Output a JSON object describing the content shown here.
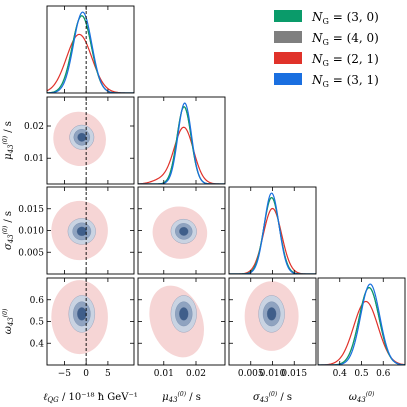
{
  "chart_data": {
    "type": "corner",
    "parameters": [
      {
        "id": "lqg",
        "label": "ℓQG / 10⁻¹⁸ ħ GeV⁻¹",
        "range": [
          -9,
          11
        ],
        "ticks": [
          -5,
          0,
          5
        ],
        "tick_labels": [
          "−5",
          "0",
          "5"
        ],
        "truth": 0
      },
      {
        "id": "mu",
        "label": "μ43(0) / s",
        "range": [
          0.002,
          0.029
        ],
        "ticks": [
          0.01,
          0.02
        ],
        "tick_labels": [
          "0.01",
          "0.02"
        ]
      },
      {
        "id": "sigma",
        "label": "σ43(0) / s",
        "range": [
          0.0,
          0.02
        ],
        "ticks": [
          0.005,
          0.01,
          0.015
        ],
        "tick_labels": [
          "0.005",
          "0.010",
          "0.015"
        ]
      },
      {
        "id": "omega",
        "label": "ω43(0)",
        "range": [
          0.3,
          0.7
        ],
        "ticks": [
          0.4,
          0.5,
          0.6
        ],
        "tick_labels": [
          "0.4",
          "0.5",
          "0.6"
        ]
      }
    ],
    "y_ticks": {
      "mu": [
        0.01,
        0.02
      ],
      "mu_labels": [
        "0.01",
        "0.02"
      ],
      "sigma": [
        0.005,
        0.01,
        0.015
      ],
      "sigma_labels": [
        "0.005",
        "0.010",
        "0.015"
      ],
      "omega": [
        0.4,
        0.5,
        0.6
      ],
      "omega_labels": [
        "0.4",
        "0.5",
        "0.6"
      ]
    },
    "series": [
      {
        "name": "NG = (3, 0)",
        "label_main": "N",
        "label_sub": "G",
        "label_value": " = (3, 0)",
        "color": "#0a9b6a"
      },
      {
        "name": "NG = (4, 0)",
        "label_main": "N",
        "label_sub": "G",
        "label_value": " = (4, 0)",
        "color": "#7f7f7f"
      },
      {
        "name": "NG = (2, 1)",
        "label_main": "N",
        "label_sub": "G",
        "label_value": " = (2, 1)",
        "color": "#e0322a"
      },
      {
        "name": "NG = (3, 1)",
        "label_main": "N",
        "label_sub": "G",
        "label_value": " = (3, 1)",
        "color": "#1a6fe0"
      }
    ],
    "marginals": {
      "lqg": [
        {
          "series": 0,
          "mean": -1.0,
          "sd": 2.2
        },
        {
          "series": 1,
          "mean": -1.0,
          "sd": 2.2
        },
        {
          "series": 2,
          "mean": -1.6,
          "sd": 2.9
        },
        {
          "series": 3,
          "mean": -0.8,
          "sd": 2.1
        }
      ],
      "mu": [
        {
          "series": 0,
          "mean": 0.0163,
          "sd": 0.0022
        },
        {
          "series": 1,
          "mean": 0.0163,
          "sd": 0.0022
        },
        {
          "series": 2,
          "mean": 0.0162,
          "sd": 0.003,
          "tail": 0.009
        },
        {
          "series": 3,
          "mean": 0.0165,
          "sd": 0.0021
        }
      ],
      "sigma": [
        {
          "series": 0,
          "mean": 0.0098,
          "sd": 0.0018
        },
        {
          "series": 1,
          "mean": 0.0098,
          "sd": 0.0018
        },
        {
          "series": 2,
          "mean": 0.01,
          "sd": 0.0021
        },
        {
          "series": 3,
          "mean": 0.0098,
          "sd": 0.0017
        }
      ],
      "omega": [
        {
          "series": 0,
          "mean": 0.535,
          "sd": 0.046
        },
        {
          "series": 1,
          "mean": 0.535,
          "sd": 0.046
        },
        {
          "series": 2,
          "mean": 0.52,
          "sd": 0.056
        },
        {
          "series": 3,
          "mean": 0.54,
          "sd": 0.044
        }
      ]
    },
    "contours": [
      {
        "x": "lqg",
        "y": "mu",
        "cx": -1.0,
        "cy": 0.0165,
        "rx": 2.8,
        "ry": 0.0038,
        "rot": -25,
        "red": {
          "cx": -1.5,
          "cy": 0.016,
          "rx": 6.0,
          "ry": 0.0085,
          "rot": -25
        }
      },
      {
        "x": "lqg",
        "y": "sigma",
        "cx": -1.0,
        "cy": 0.0098,
        "rx": 3.2,
        "ry": 0.003,
        "rot": 0,
        "red": {
          "cx": -1.5,
          "cy": 0.01,
          "rx": 6.5,
          "ry": 0.0068,
          "rot": 0
        }
      },
      {
        "x": "mu",
        "y": "sigma",
        "cx": 0.0162,
        "cy": 0.0098,
        "rx": 0.004,
        "ry": 0.0028,
        "rot": 10,
        "red": {
          "cx": 0.015,
          "cy": 0.0095,
          "rx": 0.0085,
          "ry": 0.006,
          "rot": 15
        }
      },
      {
        "x": "lqg",
        "y": "omega",
        "cx": -1.0,
        "cy": 0.535,
        "rx": 3.0,
        "ry": 0.085,
        "rot": 0,
        "red": {
          "cx": -1.5,
          "cy": 0.52,
          "rx": 6.5,
          "ry": 0.17,
          "rot": 0
        }
      },
      {
        "x": "mu",
        "y": "omega",
        "cx": 0.0162,
        "cy": 0.535,
        "rx": 0.004,
        "ry": 0.085,
        "rot": 0,
        "red": {
          "cx": 0.014,
          "cy": 0.5,
          "rx": 0.008,
          "ry": 0.17,
          "rot": -20
        }
      },
      {
        "x": "sigma",
        "y": "omega",
        "cx": 0.0098,
        "cy": 0.535,
        "rx": 0.003,
        "ry": 0.085,
        "rot": 0,
        "red": {
          "cx": 0.0098,
          "cy": 0.525,
          "rx": 0.0062,
          "ry": 0.16,
          "rot": 0
        }
      }
    ],
    "contour_levels": [
      1.0,
      0.66,
      0.35
    ],
    "fill_colors": [
      "#c9d3e2",
      "#8fa3c0",
      "#3f5e8a"
    ],
    "red_fill_color": "#f3c7c7",
    "legend_position": "top-right"
  }
}
